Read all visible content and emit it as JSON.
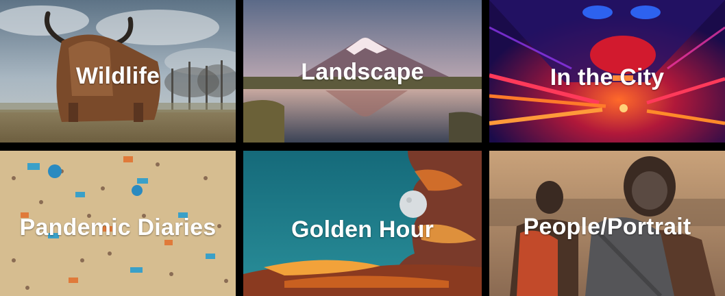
{
  "categories": [
    {
      "label": "Wildlife",
      "icon": "highland-cow-photo"
    },
    {
      "label": "Landscape",
      "icon": "mountain-lake-photo"
    },
    {
      "label": "In the City",
      "icon": "neon-tunnel-photo"
    },
    {
      "label": "Pandemic Diaries",
      "icon": "crowded-beach-photo"
    },
    {
      "label": "Golden Hour",
      "icon": "sunset-clouds-moon-photo"
    },
    {
      "label": "People/Portrait",
      "icon": "portrait-photo"
    }
  ]
}
